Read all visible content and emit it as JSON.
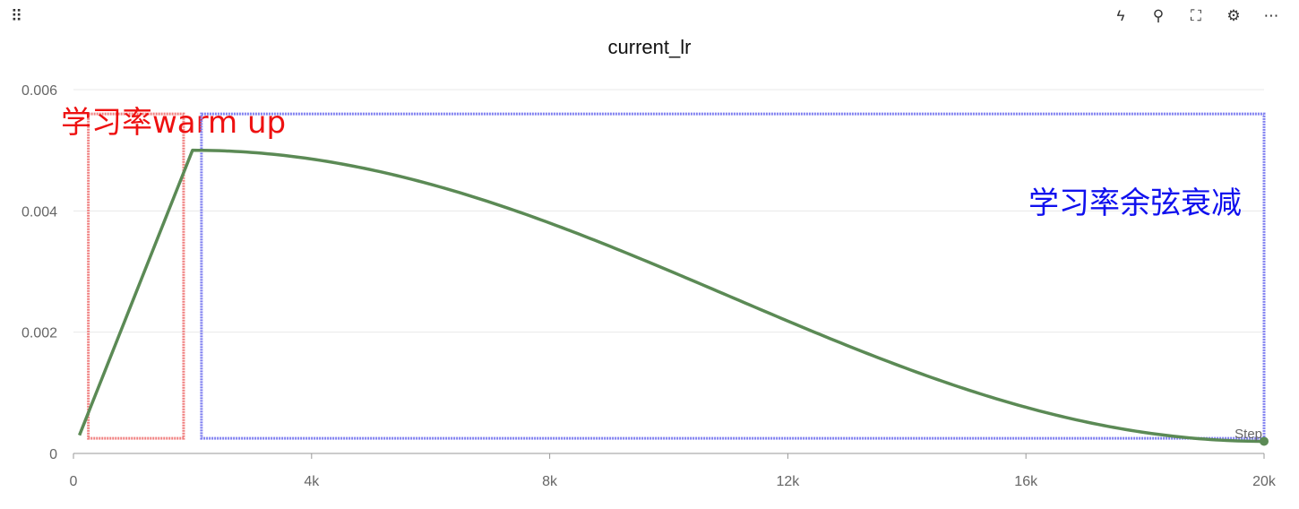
{
  "header": {
    "title": "current_lr",
    "tools": [
      {
        "icon": "lightning-icon",
        "glyph": "ϟ"
      },
      {
        "icon": "pin-icon",
        "glyph": "⚲"
      },
      {
        "icon": "fullscreen-icon",
        "glyph": "⛶"
      },
      {
        "icon": "gear-icon",
        "glyph": "⚙"
      },
      {
        "icon": "more-icon",
        "glyph": "⋯"
      }
    ]
  },
  "chart_data": {
    "type": "line",
    "title": "current_lr",
    "xlabel": "Step",
    "ylabel": "",
    "xlim": [
      0,
      20000
    ],
    "ylim": [
      0,
      0.006
    ],
    "x_ticks": [
      0,
      4000,
      8000,
      12000,
      16000,
      20000
    ],
    "x_tick_labels": [
      "0",
      "4k",
      "8k",
      "12k",
      "16k",
      "20k"
    ],
    "y_ticks": [
      0,
      0.002,
      0.004,
      0.006
    ],
    "y_tick_labels": [
      "0",
      "0.002",
      "0.004",
      "0.006"
    ],
    "grid": true,
    "series": [
      {
        "color": "#5b8a55",
        "warmup_start": [
          100,
          0.0003
        ],
        "warmup_end": [
          2000,
          0.005
        ],
        "decay_end": [
          20000,
          0.0002
        ],
        "schedule": "linear warmup then cosine decay"
      }
    ],
    "annotations": [
      {
        "text": "学习率warm up",
        "color": "#ee1111",
        "x_range": [
          250,
          1850
        ],
        "y_range": [
          0.00025,
          0.0056
        ]
      },
      {
        "text": "学习率余弦衰减",
        "color": "#1010ee",
        "x_range": [
          2150,
          20000
        ],
        "y_range": [
          0.00025,
          0.0056
        ]
      }
    ]
  }
}
